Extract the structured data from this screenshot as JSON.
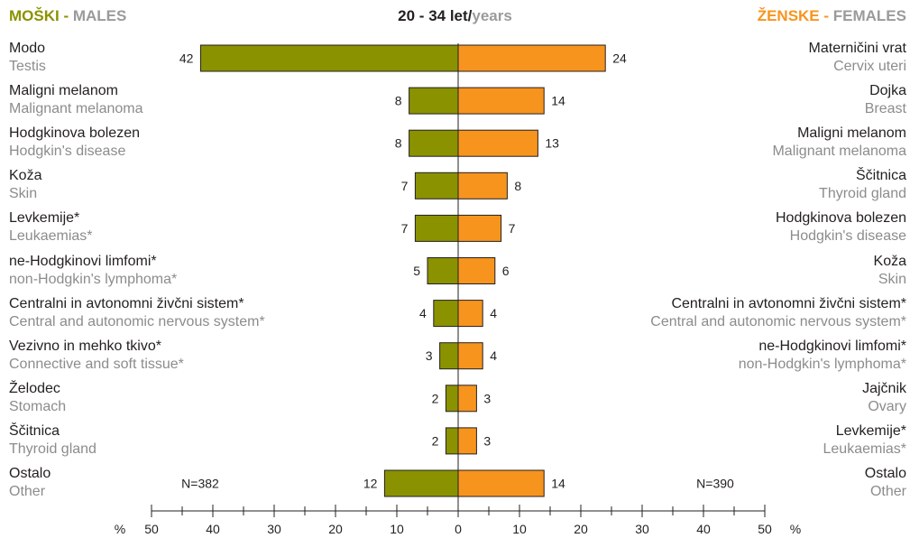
{
  "header": {
    "left_sl": "MOŠKI",
    "left_sep": " - ",
    "left_en": "MALES",
    "center_main": "20 - 34 let/",
    "center_sub": "years",
    "right_sl": "ŽENSKE",
    "right_sep": " - ",
    "right_en": "FEMALES"
  },
  "colors": {
    "male": "#8a9200",
    "female": "#f7941d",
    "axis": "#231f20"
  },
  "chart_data": {
    "type": "bar",
    "orientation": "horizontal-butterfly",
    "xlim": [
      -50,
      50
    ],
    "ticks": [
      50,
      40,
      30,
      20,
      10,
      0,
      10,
      20,
      30,
      40,
      50
    ],
    "unit_left": "%",
    "unit_right": "%",
    "males": {
      "n_label": "N=382",
      "categories": [
        {
          "sl": "Modo",
          "en": "Testis",
          "value": 42
        },
        {
          "sl": "Maligni melanom",
          "en": "Malignant melanoma",
          "value": 8
        },
        {
          "sl": "Hodgkinova bolezen",
          "en": "Hodgkin's disease",
          "value": 8
        },
        {
          "sl": "Koža",
          "en": "Skin",
          "value": 7
        },
        {
          "sl": "Levkemije*",
          "en": "Leukaemias*",
          "value": 7
        },
        {
          "sl": "ne-Hodgkinovi limfomi*",
          "en": "non-Hodgkin's lymphoma*",
          "value": 5
        },
        {
          "sl": "Centralni in avtonomni živčni sistem*",
          "en": "Central and autonomic nervous system*",
          "value": 4
        },
        {
          "sl": "Vezivno in mehko tkivo*",
          "en": "Connective and soft tissue*",
          "value": 3
        },
        {
          "sl": "Želodec",
          "en": "Stomach",
          "value": 2
        },
        {
          "sl": "Ščitnica",
          "en": "Thyroid gland",
          "value": 2
        },
        {
          "sl": "Ostalo",
          "en": "Other",
          "value": 12
        }
      ]
    },
    "females": {
      "n_label": "N=390",
      "categories": [
        {
          "sl": "Materničini vrat",
          "en": "Cervix uteri",
          "value": 24
        },
        {
          "sl": "Dojka",
          "en": "Breast",
          "value": 14
        },
        {
          "sl": "Maligni melanom",
          "en": "Malignant melanoma",
          "value": 13
        },
        {
          "sl": "Ščitnica",
          "en": "Thyroid gland",
          "value": 8
        },
        {
          "sl": "Hodgkinova bolezen",
          "en": "Hodgkin's disease",
          "value": 7
        },
        {
          "sl": "Koža",
          "en": "Skin",
          "value": 6
        },
        {
          "sl": "Centralni in avtonomni živčni sistem*",
          "en": "Central and autonomic nervous system*",
          "value": 4
        },
        {
          "sl": "ne-Hodgkinovi limfomi*",
          "en": "non-Hodgkin's lymphoma*",
          "value": 4
        },
        {
          "sl": "Jajčnik",
          "en": "Ovary",
          "value": 3
        },
        {
          "sl": "Levkemije*",
          "en": "Leukaemias*",
          "value": 3
        },
        {
          "sl": "Ostalo",
          "en": "Other",
          "value": 14
        }
      ]
    }
  }
}
